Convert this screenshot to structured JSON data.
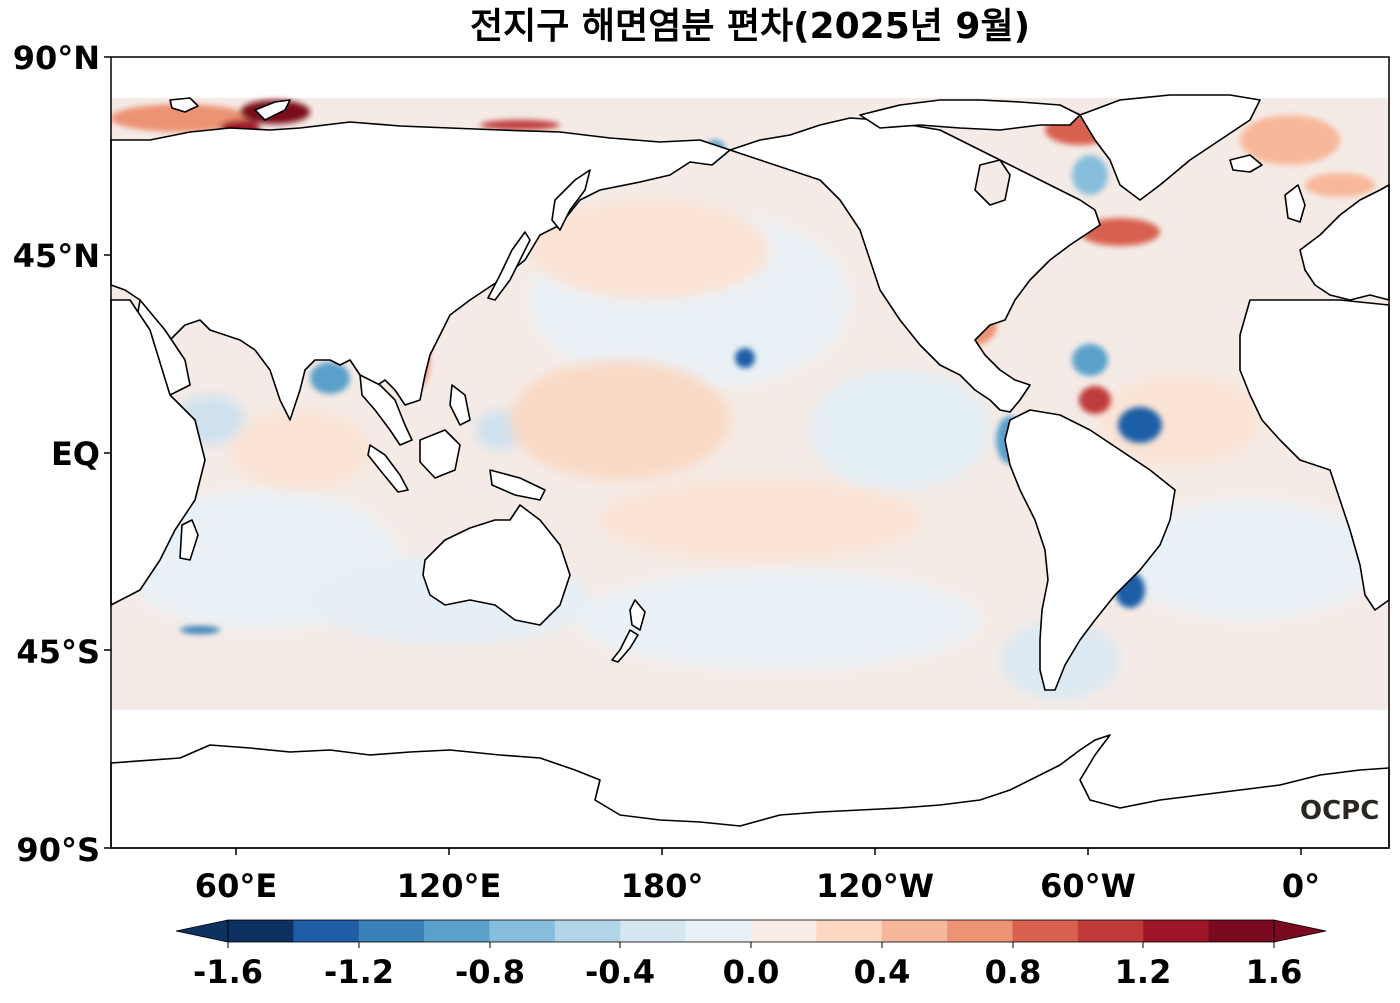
{
  "map": {
    "title": "전지구 해면염분 편차(2025년 9월)",
    "variable": "Sea surface salinity anomaly",
    "latitude_labels": [
      "90°N",
      "45°N",
      "EQ",
      "45°S",
      "90°S"
    ],
    "longitude_labels": [
      "60°E",
      "120°E",
      "180°",
      "120°W",
      "60°W",
      "0°"
    ],
    "logo_text": "OCPC"
  },
  "colorbar": {
    "tick_labels": [
      "-1.6",
      "-1.2",
      "-0.8",
      "-0.4",
      "0.0",
      "0.4",
      "0.8",
      "1.2",
      "1.6"
    ],
    "colors": [
      "#0d3160",
      "#1f5ea7",
      "#3a81ba",
      "#5aa0cb",
      "#87bddc",
      "#b2d4e7",
      "#d4e6f0",
      "#eaf1f6",
      "#f8ede6",
      "#fcd7c1",
      "#f7b79a",
      "#ec9373",
      "#d8604f",
      "#c03a3a",
      "#a01629",
      "#7a0a1f"
    ],
    "extend": "both"
  }
}
